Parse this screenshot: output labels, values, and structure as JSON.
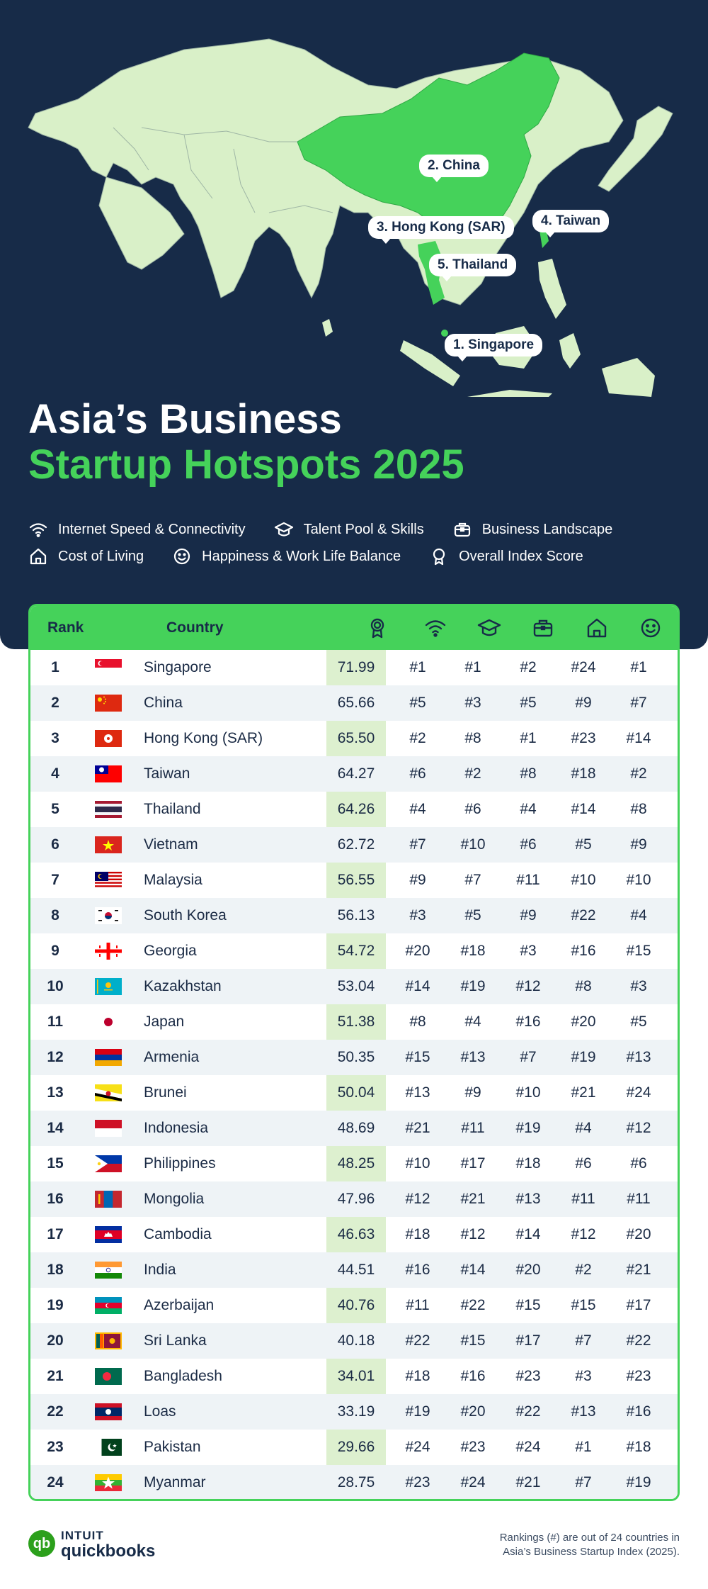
{
  "title": {
    "line1": "Asia’s Business",
    "line2": "Startup Hotspots 2025"
  },
  "map_labels": [
    {
      "name": "china",
      "text": "2. China"
    },
    {
      "name": "hong-kong",
      "text": "3. Hong Kong (SAR)"
    },
    {
      "name": "taiwan",
      "text": "4. Taiwan"
    },
    {
      "name": "thailand",
      "text": "5. Thailand"
    },
    {
      "name": "singapore",
      "text": "1. Singapore"
    }
  ],
  "legend": {
    "internet": "Internet Speed & Connectivity",
    "talent": "Talent Pool & Skills",
    "business": "Business Landscape",
    "cost": "Cost of Living",
    "happiness": "Happiness & Work Life Balance",
    "overall": "Overall Index Score"
  },
  "colors": {
    "navy": "#172b48",
    "green": "#45d25a",
    "land": "#d9f0c8",
    "score_column": "#ddf0cf"
  },
  "chart_data": {
    "type": "table",
    "columns": [
      "Rank",
      "Country",
      "Overall Index Score",
      "Internet Speed & Connectivity",
      "Talent Pool & Skills",
      "Business Landscape",
      "Cost of Living",
      "Happiness & Work Life Balance"
    ],
    "header": {
      "rank": "Rank",
      "country": "Country"
    },
    "column_icons": [
      "award-icon",
      "wifi-icon",
      "graduation-cap-icon",
      "briefcase-icon",
      "home-icon",
      "smile-icon"
    ],
    "rows": [
      {
        "rank": "1",
        "flag": "flag-singapore",
        "country": "Singapore",
        "score": "71.99",
        "internet": "#1",
        "talent": "#1",
        "business": "#2",
        "cost": "#24",
        "happiness": "#1"
      },
      {
        "rank": "2",
        "flag": "flag-china",
        "country": "China",
        "score": "65.66",
        "internet": "#5",
        "talent": "#3",
        "business": "#5",
        "cost": "#9",
        "happiness": "#7"
      },
      {
        "rank": "3",
        "flag": "flag-hong-kong",
        "country": "Hong Kong (SAR)",
        "score": "65.50",
        "internet": "#2",
        "talent": "#8",
        "business": "#1",
        "cost": "#23",
        "happiness": "#14"
      },
      {
        "rank": "4",
        "flag": "flag-taiwan",
        "country": "Taiwan",
        "score": "64.27",
        "internet": "#6",
        "talent": "#2",
        "business": "#8",
        "cost": "#18",
        "happiness": "#2"
      },
      {
        "rank": "5",
        "flag": "flag-thailand",
        "country": "Thailand",
        "score": "64.26",
        "internet": "#4",
        "talent": "#6",
        "business": "#4",
        "cost": "#14",
        "happiness": "#8"
      },
      {
        "rank": "6",
        "flag": "flag-vietnam",
        "country": "Vietnam",
        "score": "62.72",
        "internet": "#7",
        "talent": "#10",
        "business": "#6",
        "cost": "#5",
        "happiness": "#9"
      },
      {
        "rank": "7",
        "flag": "flag-malaysia",
        "country": "Malaysia",
        "score": "56.55",
        "internet": "#9",
        "talent": "#7",
        "business": "#11",
        "cost": "#10",
        "happiness": "#10"
      },
      {
        "rank": "8",
        "flag": "flag-south-korea",
        "country": "South Korea",
        "score": "56.13",
        "internet": "#3",
        "talent": "#5",
        "business": "#9",
        "cost": "#22",
        "happiness": "#4"
      },
      {
        "rank": "9",
        "flag": "flag-georgia",
        "country": "Georgia",
        "score": "54.72",
        "internet": "#20",
        "talent": "#18",
        "business": "#3",
        "cost": "#16",
        "happiness": "#15"
      },
      {
        "rank": "10",
        "flag": "flag-kazakhstan",
        "country": "Kazakhstan",
        "score": "53.04",
        "internet": "#14",
        "talent": "#19",
        "business": "#12",
        "cost": "#8",
        "happiness": "#3"
      },
      {
        "rank": "11",
        "flag": "flag-japan",
        "country": "Japan",
        "score": "51.38",
        "internet": "#8",
        "talent": "#4",
        "business": "#16",
        "cost": "#20",
        "happiness": "#5"
      },
      {
        "rank": "12",
        "flag": "flag-armenia",
        "country": "Armenia",
        "score": "50.35",
        "internet": "#15",
        "talent": "#13",
        "business": "#7",
        "cost": "#19",
        "happiness": "#13"
      },
      {
        "rank": "13",
        "flag": "flag-brunei",
        "country": "Brunei",
        "score": "50.04",
        "internet": "#13",
        "talent": "#9",
        "business": "#10",
        "cost": "#21",
        "happiness": "#24"
      },
      {
        "rank": "14",
        "flag": "flag-indonesia",
        "country": "Indonesia",
        "score": "48.69",
        "internet": "#21",
        "talent": "#11",
        "business": "#19",
        "cost": "#4",
        "happiness": "#12"
      },
      {
        "rank": "15",
        "flag": "flag-philippines",
        "country": "Philippines",
        "score": "48.25",
        "internet": "#10",
        "talent": "#17",
        "business": "#18",
        "cost": "#6",
        "happiness": "#6"
      },
      {
        "rank": "16",
        "flag": "flag-mongolia",
        "country": "Mongolia",
        "score": "47.96",
        "internet": "#12",
        "talent": "#21",
        "business": "#13",
        "cost": "#11",
        "happiness": "#11"
      },
      {
        "rank": "17",
        "flag": "flag-cambodia",
        "country": "Cambodia",
        "score": "46.63",
        "internet": "#18",
        "talent": "#12",
        "business": "#14",
        "cost": "#12",
        "happiness": "#20"
      },
      {
        "rank": "18",
        "flag": "flag-india",
        "country": "India",
        "score": "44.51",
        "internet": "#16",
        "talent": "#14",
        "business": "#20",
        "cost": "#2",
        "happiness": "#21"
      },
      {
        "rank": "19",
        "flag": "flag-azerbaijan",
        "country": "Azerbaijan",
        "score": "40.76",
        "internet": "#11",
        "talent": "#22",
        "business": "#15",
        "cost": "#15",
        "happiness": "#17"
      },
      {
        "rank": "20",
        "flag": "flag-sri-lanka",
        "country": "Sri Lanka",
        "score": "40.18",
        "internet": "#22",
        "talent": "#15",
        "business": "#17",
        "cost": "#7",
        "happiness": "#22"
      },
      {
        "rank": "21",
        "flag": "flag-bangladesh",
        "country": "Bangladesh",
        "score": "34.01",
        "internet": "#18",
        "talent": "#16",
        "business": "#23",
        "cost": "#3",
        "happiness": "#23"
      },
      {
        "rank": "22",
        "flag": "flag-laos",
        "country": "Loas",
        "score": "33.19",
        "internet": "#19",
        "talent": "#20",
        "business": "#22",
        "cost": "#13",
        "happiness": "#16"
      },
      {
        "rank": "23",
        "flag": "flag-pakistan",
        "country": "Pakistan",
        "score": "29.66",
        "internet": "#24",
        "talent": "#23",
        "business": "#24",
        "cost": "#1",
        "happiness": "#18"
      },
      {
        "rank": "24",
        "flag": "flag-myanmar",
        "country": "Myanmar",
        "score": "28.75",
        "internet": "#23",
        "talent": "#24",
        "business": "#21",
        "cost": "#7",
        "happiness": "#19"
      }
    ]
  },
  "footer": {
    "logo_line1": "INTUIT",
    "logo_line2": "quickbooks",
    "logo_mark": "qb",
    "note_line1": "Rankings (#) are out of 24 countries in",
    "note_line2": "Asia’s Business Startup Index (2025)."
  }
}
